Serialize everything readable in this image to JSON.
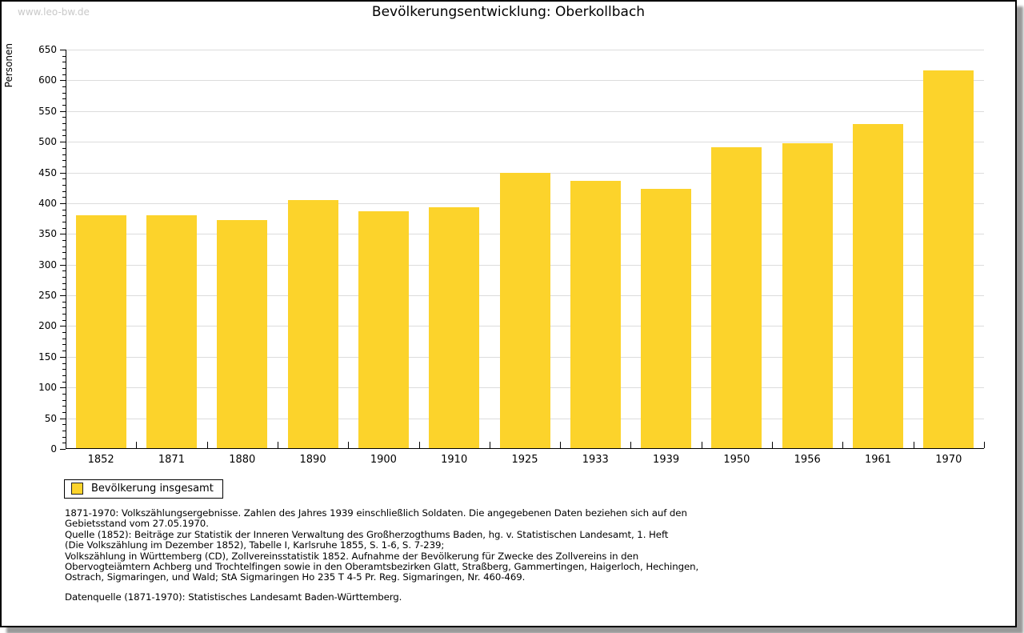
{
  "watermark": "www.leo-bw.de",
  "chart_data": {
    "type": "bar",
    "title": "Bevölkerungsentwicklung: Oberkollbach",
    "ylabel": "Personen",
    "xlabel": "",
    "categories": [
      "1852",
      "1871",
      "1880",
      "1890",
      "1900",
      "1910",
      "1925",
      "1933",
      "1939",
      "1950",
      "1956",
      "1961",
      "1970"
    ],
    "values": [
      381,
      381,
      373,
      405,
      387,
      394,
      449,
      437,
      423,
      491,
      497,
      529,
      616
    ],
    "series_name": "Bevölkerung insgesamt",
    "ylim": [
      0,
      650
    ],
    "ytick_major": 50,
    "ytick_minor": 10,
    "grid": true,
    "legend_position": "bottom-left"
  },
  "legend": {
    "label": "Bevölkerung insgesamt"
  },
  "colors": {
    "bar": "#FCD32B",
    "grid": "#DCDCDC",
    "axis": "#000000",
    "watermark": "#C9C9C9"
  },
  "footnotes": [
    "1871-1970: Volkszählungsergebnisse. Zahlen des Jahres 1939 einschließlich Soldaten. Die angegebenen Daten beziehen sich auf den",
    "Gebietsstand vom 27.05.1970.",
    "Quelle (1852): Beiträge zur Statistik der Inneren Verwaltung des Großherzogthums Baden, hg. v. Statistischen Landesamt, 1. Heft",
    "(Die Volkszählung im Dezember 1852), Tabelle I, Karlsruhe 1855, S. 1-6, S. 7-239;",
    "Volkszählung in Württemberg (CD), Zollvereinsstatistik 1852. Aufnahme der Bevölkerung für Zwecke des Zollvereins in den",
    "Obervogteiämtern Achberg und Trochtelfingen sowie in den Oberamtsbezirken Glatt, Straßberg, Gammertingen, Haigerloch, Hechingen,",
    "Ostrach, Sigmaringen, und Wald; StA Sigmaringen Ho 235 T 4-5 Pr. Reg. Sigmaringen, Nr. 460-469."
  ],
  "datasource": "Datenquelle (1871-1970): Statistisches Landesamt Baden-Württemberg."
}
